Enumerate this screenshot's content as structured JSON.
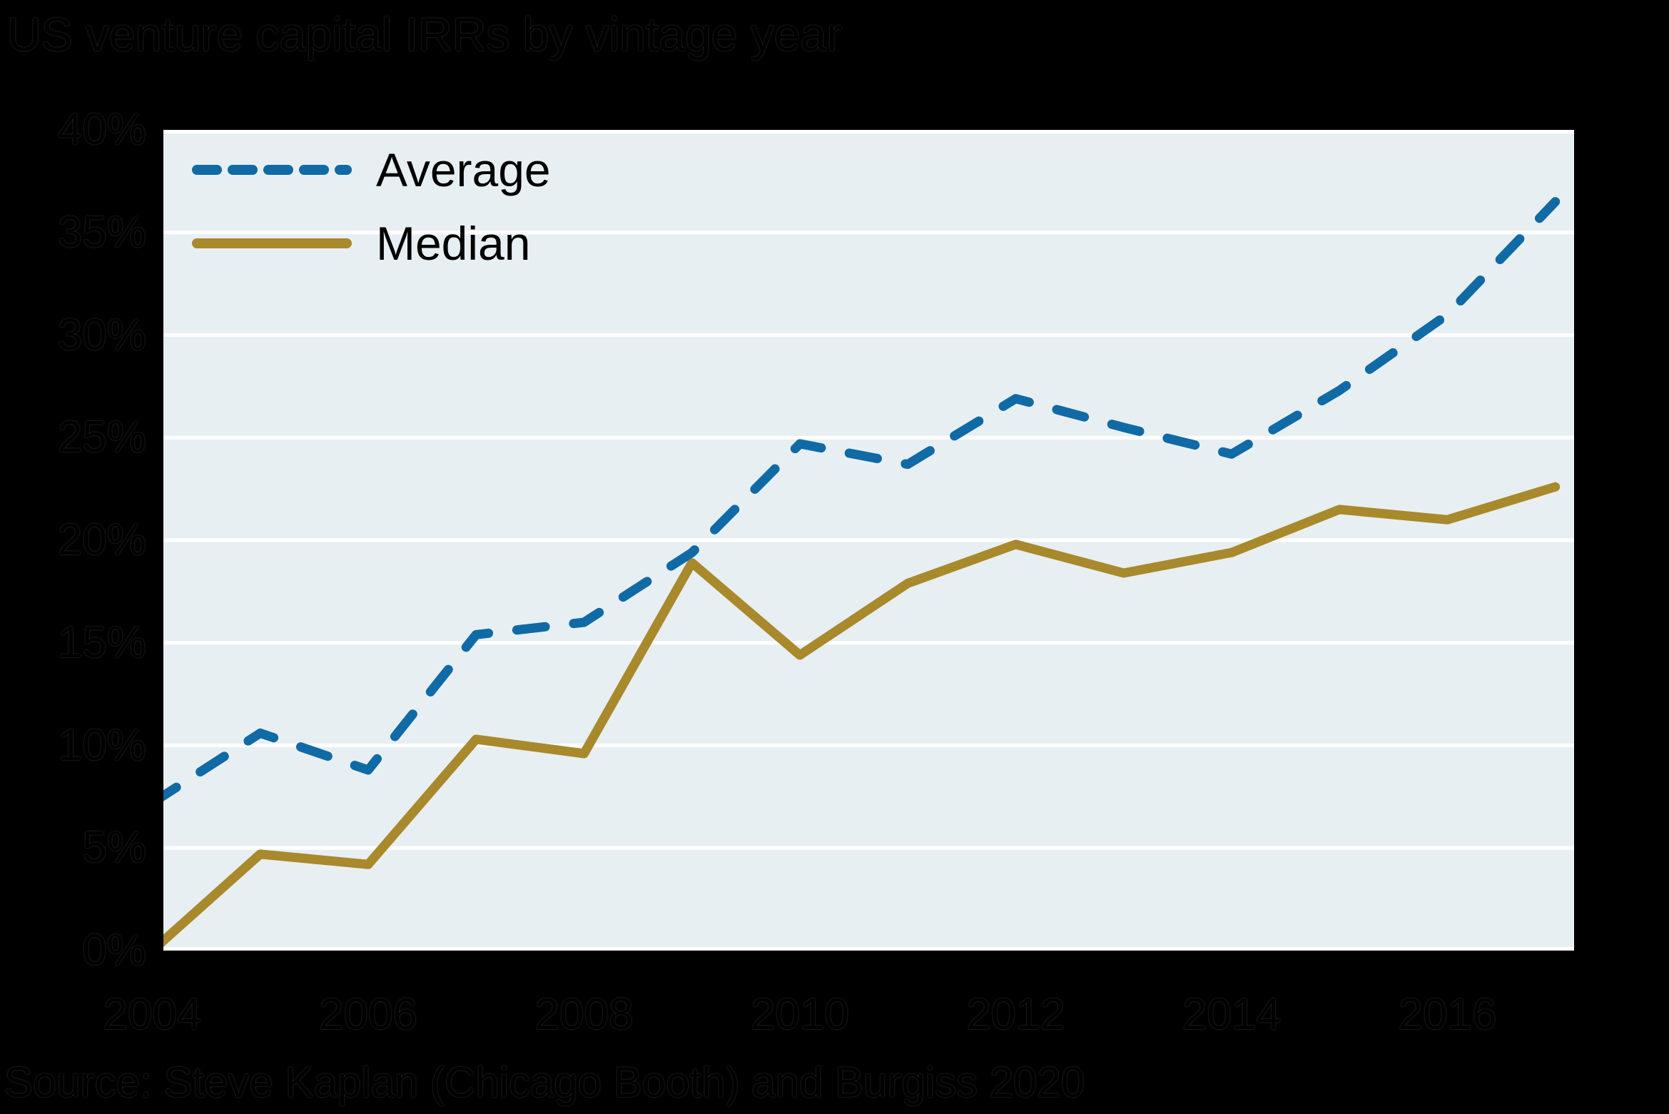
{
  "title": "US venture capital IRRs by vintage year",
  "source": "Source: Steve Kaplan (Chicago Booth) and Burgiss 2020",
  "colors": {
    "background": "#000000",
    "plot_background": "#e8eff2",
    "gridline": "#ffffff",
    "average_line": "#0f6aa5",
    "median_line": "#a8892c",
    "legend_text": "#000000"
  },
  "legend": {
    "items": [
      {
        "label": "Average",
        "style": "dashed"
      },
      {
        "label": "Median",
        "style": "solid"
      }
    ]
  },
  "chart_data": {
    "type": "line",
    "title": "US venture capital IRRs by vintage year",
    "xlabel": "",
    "ylabel": "",
    "grid": true,
    "legend_position": "top-left",
    "xlim": [
      2004.1025,
      2017.1736
    ],
    "ylim": [
      0,
      40
    ],
    "x": [
      2004,
      2005,
      2006,
      2007,
      2008,
      2009,
      2010,
      2011,
      2012,
      2013,
      2014,
      2015,
      2016,
      2017
    ],
    "series": [
      {
        "name": "Average",
        "color": "#0f6aa5",
        "dash": true,
        "values": [
          7.2,
          10.6,
          8.8,
          15.4,
          16.0,
          19.4,
          24.7,
          23.7,
          26.9,
          25.5,
          24.2,
          27.3,
          31.0,
          36.5
        ]
      },
      {
        "name": "Median",
        "color": "#a8892c",
        "dash": false,
        "values": [
          0.0,
          4.7,
          4.2,
          10.3,
          9.6,
          18.9,
          14.4,
          17.9,
          19.8,
          18.4,
          19.4,
          21.5,
          21.0,
          22.6
        ]
      }
    ],
    "y_tick_labels": [
      "40%",
      "35%",
      "30%",
      "25%",
      "20%",
      "15%",
      "10%",
      "5%",
      "0%"
    ],
    "x_tick_labels": [
      "2004",
      "2006",
      "2008",
      "2010",
      "2012",
      "2014",
      "2016"
    ]
  }
}
